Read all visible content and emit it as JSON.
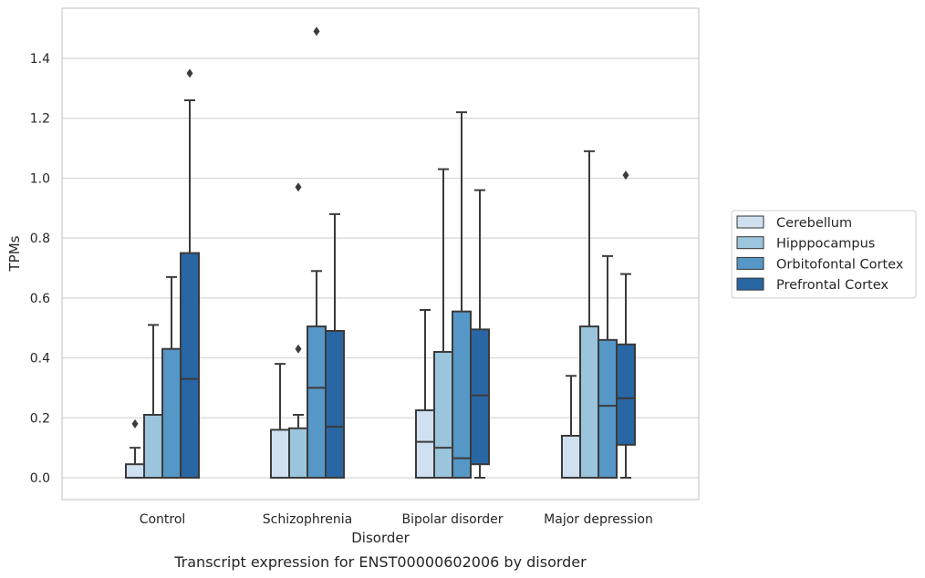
{
  "chart_data": {
    "type": "box",
    "caption": "Transcript expression for ENST00000602006 by disorder",
    "xlabel": "Disorder",
    "ylabel": "TPMs",
    "ylim": [
      -0.07,
      1.57
    ],
    "yticks": [
      0.0,
      0.2,
      0.4,
      0.6,
      0.8,
      1.0,
      1.2,
      1.4
    ],
    "ytick_labels": [
      "0.0",
      "0.2",
      "0.4",
      "0.6",
      "0.8",
      "1.0",
      "1.2",
      "1.4"
    ],
    "grid": true,
    "legend_position": "right",
    "categories": [
      "Control",
      "Schizophrenia",
      "Bipolar disorder",
      "Major depression"
    ],
    "series": [
      {
        "name": "Cerebellum",
        "color": "#cfe0f1",
        "boxes": [
          {
            "whisker_low": 0.0,
            "q1": 0.0,
            "median": 0.0,
            "q3": 0.045,
            "whisker_high": 0.1,
            "outliers": [
              0.18
            ]
          },
          {
            "whisker_low": 0.0,
            "q1": 0.0,
            "median": 0.0,
            "q3": 0.16,
            "whisker_high": 0.38,
            "outliers": []
          },
          {
            "whisker_low": 0.0,
            "q1": 0.0,
            "median": 0.12,
            "q3": 0.225,
            "whisker_high": 0.56,
            "outliers": []
          },
          {
            "whisker_low": 0.0,
            "q1": 0.0,
            "median": 0.0,
            "q3": 0.14,
            "whisker_high": 0.34,
            "outliers": []
          }
        ]
      },
      {
        "name": "Hipppocampus",
        "color": "#9bc5dd",
        "boxes": [
          {
            "whisker_low": 0.0,
            "q1": 0.0,
            "median": 0.0,
            "q3": 0.21,
            "whisker_high": 0.51,
            "outliers": []
          },
          {
            "whisker_low": 0.0,
            "q1": 0.0,
            "median": 0.0,
            "q3": 0.165,
            "whisker_high": 0.21,
            "outliers": [
              0.43,
              0.97
            ]
          },
          {
            "whisker_low": 0.0,
            "q1": 0.0,
            "median": 0.1,
            "q3": 0.42,
            "whisker_high": 1.03,
            "outliers": []
          },
          {
            "whisker_low": 0.0,
            "q1": 0.0,
            "median": 0.0,
            "q3": 0.505,
            "whisker_high": 1.09,
            "outliers": []
          }
        ]
      },
      {
        "name": "Orbitofontal Cortex",
        "color": "#5597c6",
        "boxes": [
          {
            "whisker_low": 0.0,
            "q1": 0.0,
            "median": 0.0,
            "q3": 0.43,
            "whisker_high": 0.67,
            "outliers": []
          },
          {
            "whisker_low": 0.0,
            "q1": 0.0,
            "median": 0.3,
            "q3": 0.505,
            "whisker_high": 0.69,
            "outliers": [
              1.49
            ]
          },
          {
            "whisker_low": 0.0,
            "q1": 0.0,
            "median": 0.065,
            "q3": 0.555,
            "whisker_high": 1.22,
            "outliers": []
          },
          {
            "whisker_low": 0.0,
            "q1": 0.0,
            "median": 0.24,
            "q3": 0.46,
            "whisker_high": 0.74,
            "outliers": []
          }
        ]
      },
      {
        "name": "Prefrontal Cortex",
        "color": "#2866a4",
        "boxes": [
          {
            "whisker_low": 0.0,
            "q1": 0.0,
            "median": 0.33,
            "q3": 0.75,
            "whisker_high": 1.26,
            "outliers": [
              1.35
            ]
          },
          {
            "whisker_low": 0.0,
            "q1": 0.0,
            "median": 0.17,
            "q3": 0.49,
            "whisker_high": 0.88,
            "outliers": []
          },
          {
            "whisker_low": 0.0,
            "q1": 0.045,
            "median": 0.275,
            "q3": 0.495,
            "whisker_high": 0.96,
            "outliers": []
          },
          {
            "whisker_low": 0.0,
            "q1": 0.11,
            "median": 0.265,
            "q3": 0.445,
            "whisker_high": 0.68,
            "outliers": [
              1.01
            ]
          }
        ]
      }
    ]
  }
}
